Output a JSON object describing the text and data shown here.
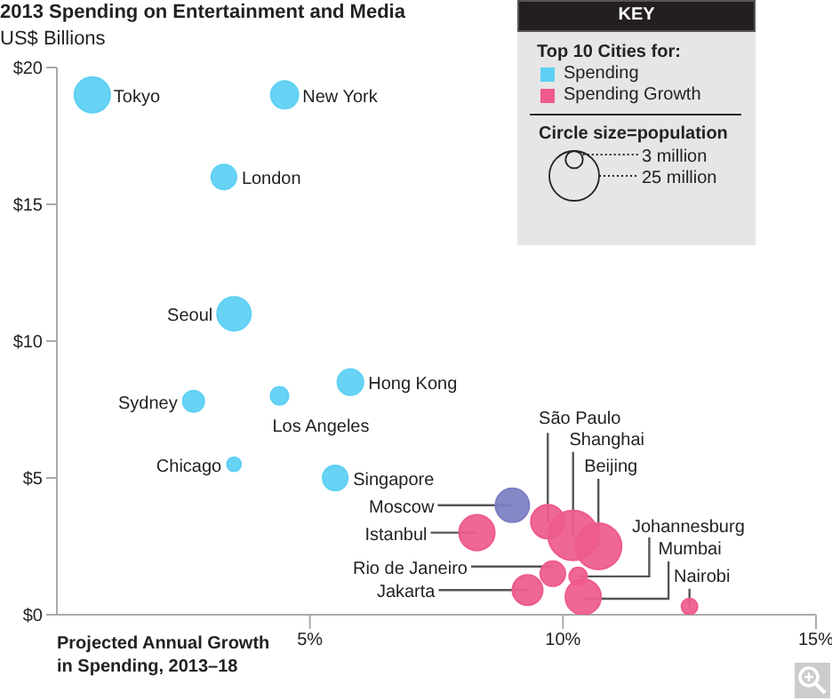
{
  "chart_data": {
    "type": "bubble",
    "title": "2013 Spending on Entertainment and Media",
    "ylabel": "US$ Billions",
    "xlabel": "Projected Annual Growth in Spending, 2013–18",
    "legend_title": "Top 10 Cities for:",
    "legend": "top right",
    "xlim": [
      0,
      15
    ],
    "xticks": [
      {
        "value": 5,
        "label": "5%"
      },
      {
        "value": 10,
        "label": "10%"
      },
      {
        "value": 15,
        "label": "15%"
      }
    ],
    "ylim": [
      0,
      20
    ],
    "yticks": [
      {
        "value": 0,
        "label": "$0"
      },
      {
        "value": 5,
        "label": "$5"
      },
      {
        "value": 10,
        "label": "$10"
      },
      {
        "value": 15,
        "label": "$15"
      },
      {
        "value": 20,
        "label": "$20"
      }
    ],
    "size_legend": [
      {
        "value": 3,
        "label": "3 million"
      },
      {
        "value": 25,
        "label": "25 million"
      }
    ],
    "series": [
      {
        "name": "Spending",
        "color": "#5dd0f4",
        "x": [
          0.7,
          4.5,
          3.3,
          3.5,
          2.7,
          4.4,
          5.8,
          3.5,
          5.5
        ],
        "values": [
          19,
          19,
          16,
          11,
          7.8,
          8,
          8.5,
          5.5,
          5
        ],
        "sizes": [
          12.8,
          7.6,
          6.3,
          11.5,
          4.6,
          3.2,
          6.8,
          2,
          6.3
        ]
      },
      {
        "color": "#7b7fc2",
        "x": [
          9
        ],
        "values": [
          4
        ],
        "sizes": [
          11.5
        ]
      },
      {
        "name": "Spending Growth",
        "color": "#ee5b8c",
        "x": [
          8.3,
          9.7,
          10.2,
          10.7,
          9.8,
          10.3,
          9.3,
          10.4,
          12.5
        ],
        "values": [
          3,
          3.4,
          2.9,
          2.5,
          1.5,
          1.4,
          0.9,
          0.65,
          0.3
        ],
        "sizes": [
          12.8,
          11.5,
          25,
          21.6,
          6.3,
          3.2,
          9.2,
          12.8,
          2.6
        ]
      }
    ],
    "annotations": [
      "KEY",
      "Circle size=population",
      {
        "text": "Tokyo",
        "x": 0.7,
        "y": 19
      },
      {
        "text": "New York",
        "x": 4.5,
        "y": 19
      },
      {
        "text": "London",
        "x": 3.3,
        "y": 16
      },
      {
        "text": "Seoul",
        "x": 3.5,
        "y": 11
      },
      {
        "text": "Sydney",
        "x": 2.7,
        "y": 7.8
      },
      {
        "text": "Los Angeles",
        "x": 4.4,
        "y": 8
      },
      {
        "text": "Hong Kong",
        "x": 5.8,
        "y": 8.5
      },
      {
        "text": "Chicago",
        "x": 3.5,
        "y": 5.5
      },
      {
        "text": "Singapore",
        "x": 5.5,
        "y": 5
      },
      {
        "text": "Moscow",
        "x": 9,
        "y": 4
      },
      {
        "text": "Istanbul",
        "x": 8.3,
        "y": 3
      },
      {
        "text": "São Paulo",
        "x": 9.7,
        "y": 3.4
      },
      {
        "text": "Shanghai",
        "x": 10.2,
        "y": 2.9
      },
      {
        "text": "Beijing",
        "x": 10.7,
        "y": 2.5
      },
      {
        "text": "Rio de Janeiro",
        "x": 9.8,
        "y": 1.5
      },
      {
        "text": "Johannesburg",
        "x": 10.3,
        "y": 1.4
      },
      {
        "text": "Jakarta",
        "x": 9.3,
        "y": 0.9
      },
      {
        "text": "Mumbai",
        "x": 10.4,
        "y": 0.65
      },
      {
        "text": "Nairobi",
        "x": 12.5,
        "y": 0.3
      }
    ]
  }
}
